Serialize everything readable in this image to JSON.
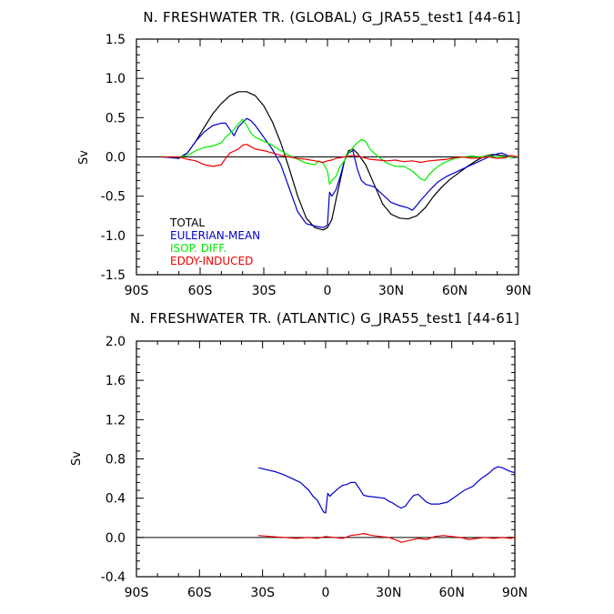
{
  "chart_data": [
    {
      "type": "line",
      "title": "N. FRESHWATER TR. (GLOBAL) G_JRA55_test1 [44-61]",
      "ylabel": "Sv",
      "xlabel": "",
      "xlim": [
        -90,
        90
      ],
      "ylim": [
        -1.5,
        1.5
      ],
      "xticks": [
        -90,
        -60,
        -30,
        0,
        30,
        60,
        90
      ],
      "xtick_labels": [
        "90S",
        "60S",
        "30S",
        "0",
        "30N",
        "60N",
        "90N"
      ],
      "yticks": [
        -1.5,
        -1.0,
        -0.5,
        0.0,
        0.5,
        1.0,
        1.5
      ],
      "ytick_labels": [
        "-1.5",
        "-1.0",
        "-0.5",
        "0.0",
        "0.5",
        "1.0",
        "1.5"
      ],
      "zero_line": true,
      "grid": false,
      "legend_position": "bottom-left",
      "series": [
        {
          "name": "TOTAL",
          "color": "#000000",
          "x": [
            -78,
            -70,
            -66,
            -62,
            -58,
            -54,
            -50,
            -46,
            -42,
            -38,
            -34,
            -30,
            -26,
            -22,
            -18,
            -14,
            -10,
            -6,
            -2,
            0,
            2,
            4,
            6,
            8,
            10,
            12,
            14,
            18,
            22,
            26,
            30,
            34,
            38,
            42,
            46,
            50,
            54,
            58,
            62,
            66,
            70,
            74,
            78,
            82,
            86,
            90
          ],
          "y": [
            0.0,
            -0.01,
            0.05,
            0.2,
            0.38,
            0.55,
            0.68,
            0.78,
            0.83,
            0.83,
            0.78,
            0.65,
            0.45,
            0.18,
            -0.15,
            -0.5,
            -0.78,
            -0.9,
            -0.93,
            -0.9,
            -0.8,
            -0.55,
            -0.3,
            -0.05,
            0.08,
            0.1,
            0.05,
            -0.1,
            -0.35,
            -0.6,
            -0.73,
            -0.78,
            -0.79,
            -0.75,
            -0.65,
            -0.5,
            -0.38,
            -0.28,
            -0.2,
            -0.12,
            -0.05,
            0.01,
            0.03,
            0.02,
            0.0,
            0.0
          ]
        },
        {
          "name": "EULERIAN-MEAN",
          "color": "#0000cc",
          "x": [
            -78,
            -70,
            -66,
            -62,
            -58,
            -54,
            -50,
            -48,
            -46,
            -44,
            -42,
            -40,
            -38,
            -36,
            -34,
            -30,
            -26,
            -22,
            -18,
            -14,
            -10,
            -6,
            -2,
            0,
            1,
            2,
            4,
            6,
            8,
            10,
            12,
            14,
            16,
            18,
            22,
            26,
            30,
            34,
            38,
            40,
            42,
            44,
            48,
            52,
            56,
            60,
            64,
            68,
            72,
            76,
            80,
            82,
            84,
            86,
            88,
            90
          ],
          "y": [
            0.0,
            -0.02,
            0.05,
            0.2,
            0.32,
            0.4,
            0.43,
            0.43,
            0.35,
            0.27,
            0.38,
            0.44,
            0.49,
            0.46,
            0.4,
            0.25,
            0.1,
            -0.1,
            -0.4,
            -0.7,
            -0.85,
            -0.88,
            -0.9,
            -0.87,
            -0.45,
            -0.5,
            -0.42,
            -0.25,
            -0.05,
            0.05,
            0.08,
            -0.15,
            -0.3,
            -0.35,
            -0.38,
            -0.48,
            -0.58,
            -0.62,
            -0.65,
            -0.68,
            -0.62,
            -0.55,
            -0.43,
            -0.32,
            -0.25,
            -0.2,
            -0.15,
            -0.1,
            -0.05,
            0.0,
            0.04,
            0.05,
            0.03,
            0.0,
            -0.01,
            0.0
          ]
        },
        {
          "name": "ISOP. DIFF.",
          "color": "#00ee00",
          "x": [
            -78,
            -70,
            -66,
            -62,
            -58,
            -54,
            -50,
            -48,
            -46,
            -44,
            -42,
            -40,
            -38,
            -36,
            -34,
            -30,
            -26,
            -22,
            -18,
            -14,
            -10,
            -6,
            -4,
            -2,
            0,
            1,
            2,
            4,
            6,
            8,
            10,
            12,
            14,
            16,
            18,
            20,
            24,
            28,
            32,
            36,
            40,
            44,
            46,
            48,
            52,
            56,
            60,
            64,
            68,
            72,
            76,
            80,
            84,
            90
          ],
          "y": [
            0.0,
            0.0,
            0.02,
            0.08,
            0.12,
            0.14,
            0.18,
            0.25,
            0.3,
            0.35,
            0.42,
            0.48,
            0.4,
            0.3,
            0.25,
            0.2,
            0.15,
            0.08,
            0.02,
            -0.03,
            -0.08,
            -0.1,
            -0.05,
            -0.08,
            -0.18,
            -0.35,
            -0.3,
            -0.25,
            -0.12,
            -0.05,
            0.05,
            0.12,
            0.18,
            0.22,
            0.2,
            0.1,
            0.0,
            -0.08,
            -0.12,
            -0.12,
            -0.18,
            -0.28,
            -0.3,
            -0.22,
            -0.12,
            -0.06,
            -0.02,
            0.0,
            0.01,
            0.0,
            0.01,
            0.0,
            0.0,
            0.0
          ]
        },
        {
          "name": "EDDY-INDUCED",
          "color": "#ee0000",
          "x": [
            -78,
            -70,
            -66,
            -62,
            -58,
            -54,
            -50,
            -48,
            -46,
            -42,
            -40,
            -38,
            -36,
            -34,
            -30,
            -26,
            -22,
            -18,
            -14,
            -10,
            -6,
            -2,
            0,
            2,
            4,
            8,
            12,
            16,
            20,
            24,
            28,
            32,
            36,
            40,
            44,
            48,
            52,
            56,
            60,
            64,
            68,
            72,
            76,
            80,
            84,
            86,
            88,
            90
          ],
          "y": [
            0.0,
            0.0,
            -0.03,
            -0.05,
            -0.1,
            -0.12,
            -0.1,
            -0.02,
            0.05,
            0.1,
            0.15,
            0.16,
            0.13,
            0.1,
            0.08,
            0.05,
            0.02,
            0.0,
            -0.02,
            -0.03,
            -0.05,
            -0.07,
            -0.05,
            -0.04,
            -0.02,
            0.0,
            0.02,
            0.0,
            -0.03,
            -0.04,
            -0.05,
            -0.04,
            -0.06,
            -0.05,
            -0.07,
            -0.05,
            -0.04,
            -0.03,
            -0.01,
            0.0,
            -0.02,
            -0.01,
            0.0,
            -0.02,
            -0.01,
            0.02,
            0.01,
            0.0
          ]
        }
      ]
    },
    {
      "type": "line",
      "title": "N. FRESHWATER TR. (ATLANTIC) G_JRA55_test1 [44-61]",
      "ylabel": "Sv",
      "xlabel": "",
      "xlim": [
        -90,
        90
      ],
      "ylim": [
        -0.4,
        2.0
      ],
      "xticks": [
        -90,
        -60,
        -30,
        0,
        30,
        60,
        90
      ],
      "xtick_labels": [
        "90S",
        "60S",
        "30S",
        "0",
        "30N",
        "60N",
        "90N"
      ],
      "yticks": [
        -0.4,
        0.0,
        0.4,
        0.8,
        1.2,
        1.6,
        2.0
      ],
      "ytick_labels": [
        "-0.4",
        "0.0",
        "0.4",
        "0.8",
        "1.2",
        "1.6",
        "2.0"
      ],
      "zero_line": true,
      "grid": false,
      "series": [
        {
          "name": "",
          "color": "#0000cc",
          "x": [
            -32,
            -28,
            -24,
            -20,
            -16,
            -12,
            -8,
            -6,
            -4,
            -2,
            -1,
            0,
            1,
            2,
            4,
            6,
            8,
            10,
            12,
            14,
            16,
            18,
            20,
            24,
            28,
            30,
            32,
            34,
            36,
            38,
            40,
            42,
            44,
            46,
            48,
            50,
            54,
            58,
            62,
            66,
            70,
            74,
            78,
            80,
            82,
            84,
            86,
            88,
            90
          ],
          "y": [
            0.71,
            0.69,
            0.67,
            0.64,
            0.6,
            0.56,
            0.48,
            0.42,
            0.38,
            0.3,
            0.26,
            0.25,
            0.45,
            0.42,
            0.46,
            0.5,
            0.53,
            0.54,
            0.56,
            0.56,
            0.5,
            0.43,
            0.42,
            0.41,
            0.4,
            0.37,
            0.35,
            0.32,
            0.3,
            0.32,
            0.38,
            0.43,
            0.44,
            0.4,
            0.36,
            0.34,
            0.34,
            0.36,
            0.42,
            0.48,
            0.52,
            0.6,
            0.66,
            0.7,
            0.72,
            0.71,
            0.69,
            0.67,
            0.66
          ]
        },
        {
          "name": "",
          "color": "#ee0000",
          "x": [
            -32,
            -26,
            -20,
            -14,
            -8,
            -4,
            0,
            4,
            8,
            12,
            16,
            18,
            22,
            26,
            30,
            34,
            36,
            40,
            44,
            48,
            52,
            56,
            60,
            64,
            68,
            72,
            76,
            80,
            84,
            88,
            90
          ],
          "y": [
            0.02,
            0.01,
            0.0,
            -0.01,
            0.0,
            -0.01,
            0.01,
            0.0,
            -0.01,
            0.02,
            0.03,
            0.04,
            0.02,
            0.01,
            0.0,
            -0.03,
            -0.05,
            -0.03,
            -0.01,
            -0.02,
            0.01,
            0.02,
            0.01,
            0.0,
            -0.02,
            -0.01,
            0.0,
            -0.01,
            0.0,
            -0.01,
            0.0
          ]
        }
      ]
    }
  ]
}
